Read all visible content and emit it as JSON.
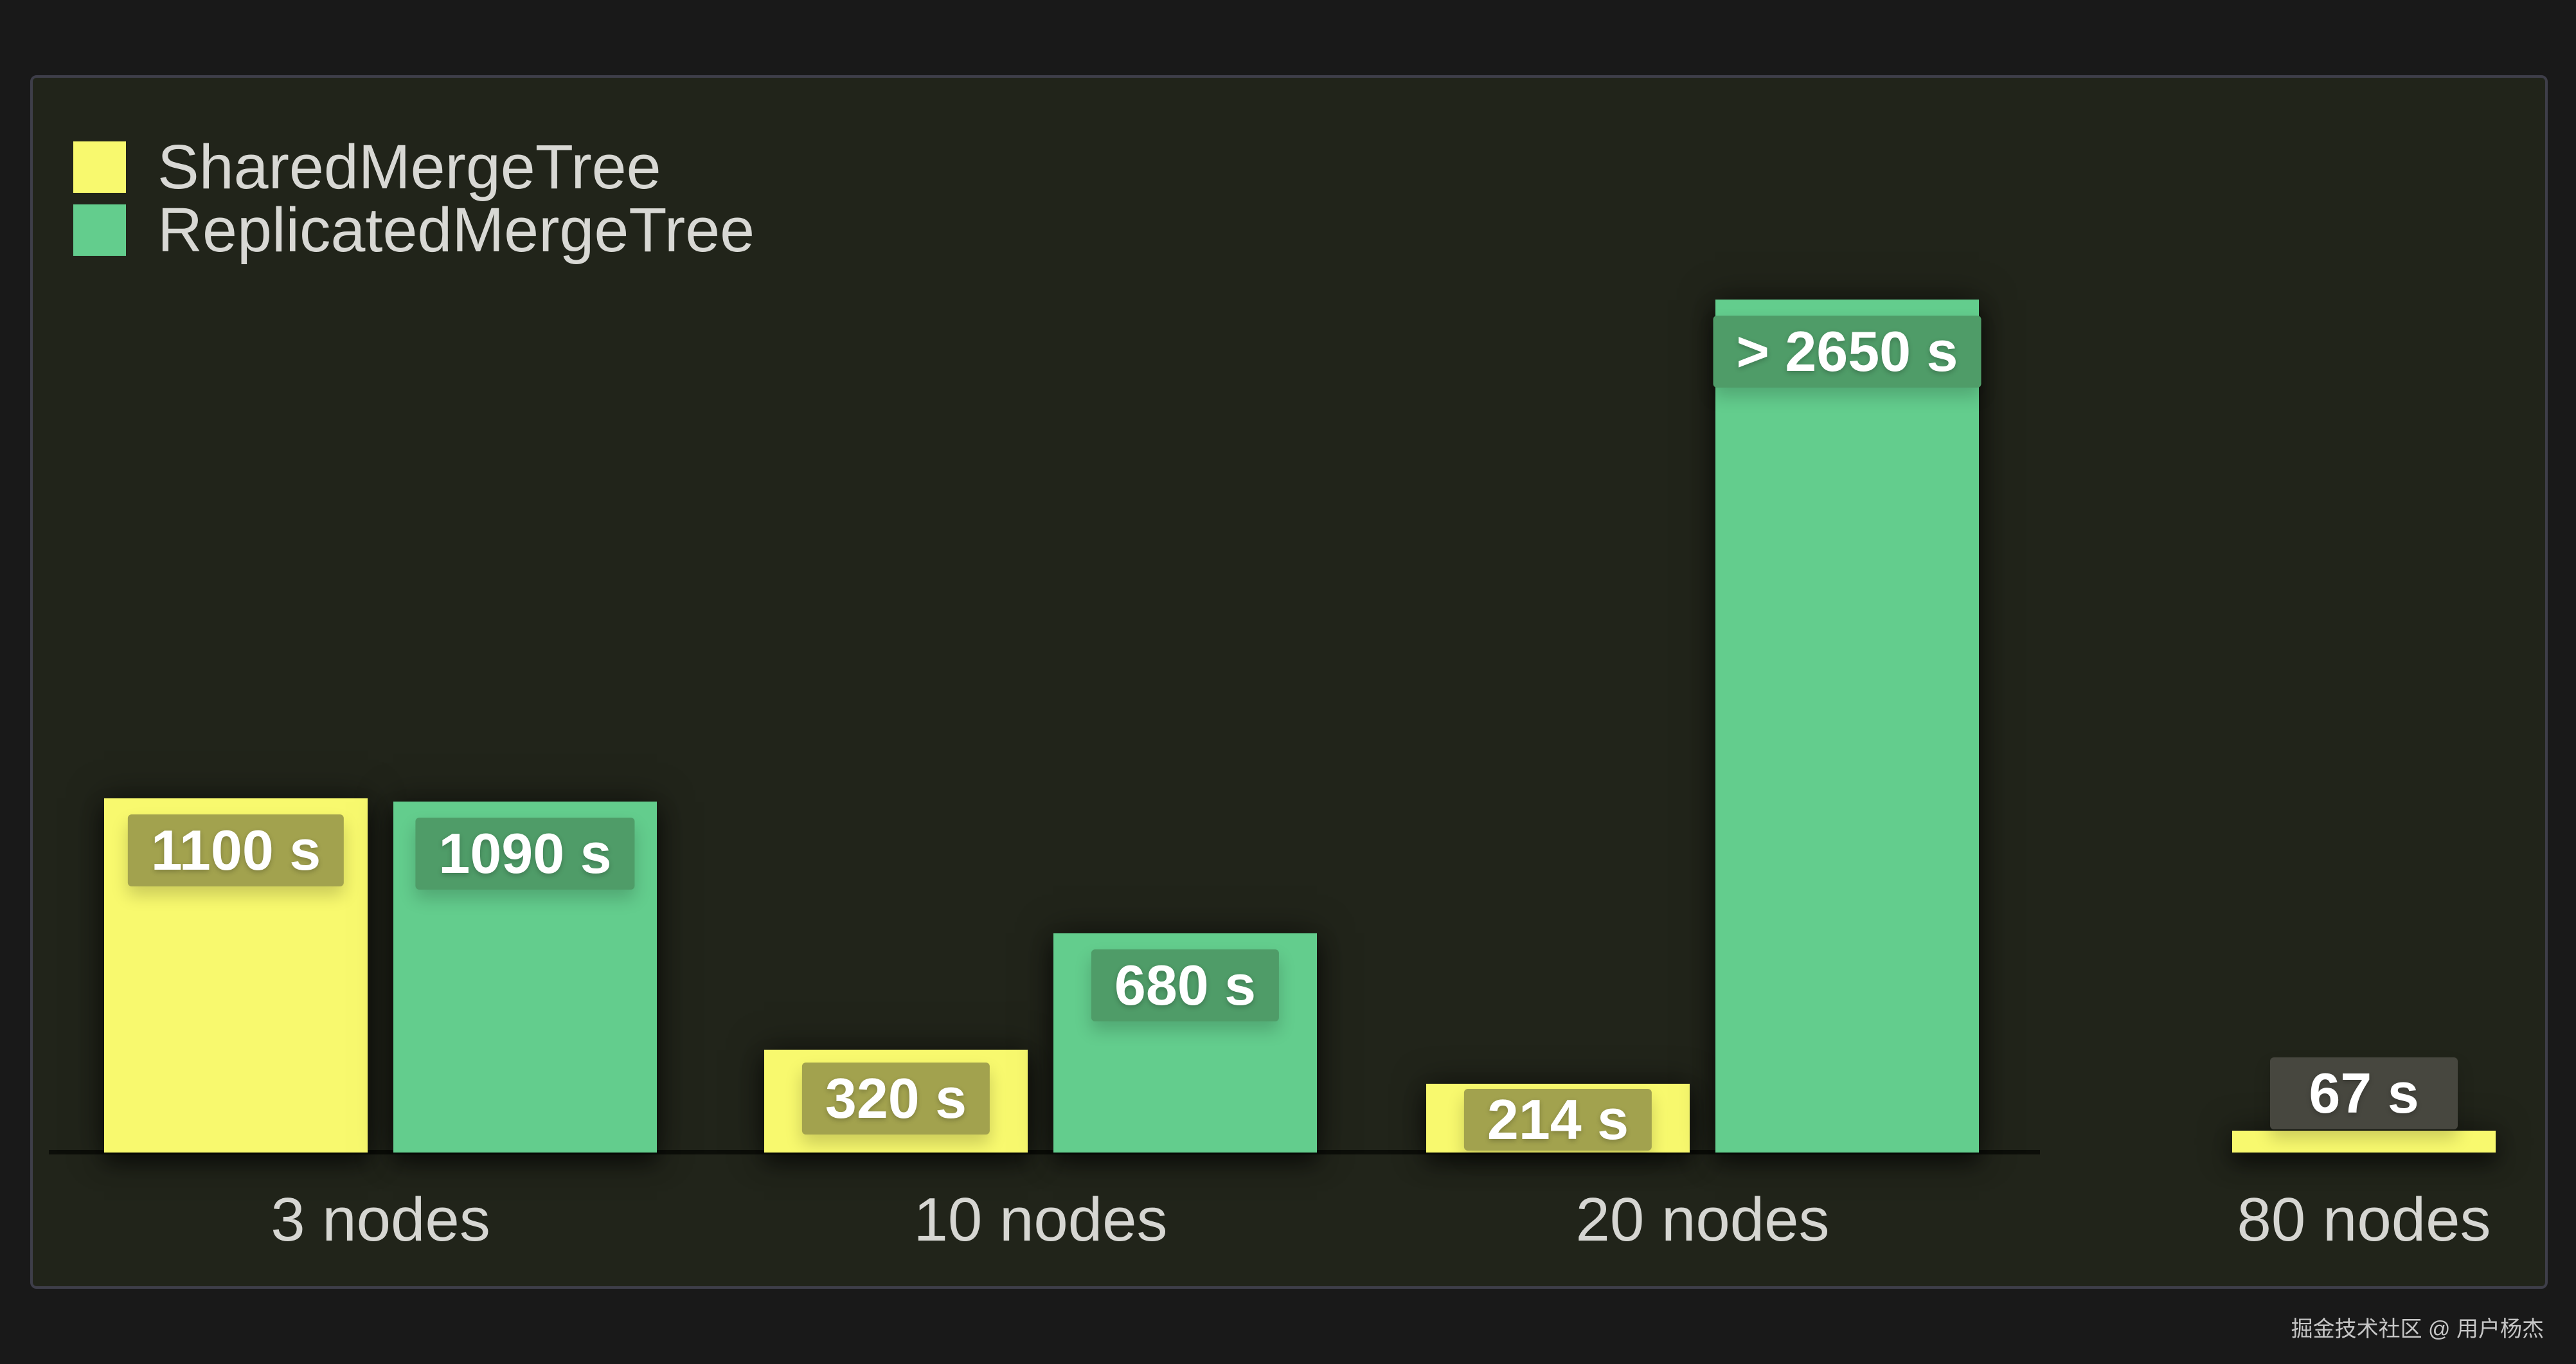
{
  "watermark": "掘金技术社区 @ 用户杨杰",
  "colors": {
    "page_background": "#191919",
    "panel_background": "#21241a",
    "panel_border": "#3e3e49",
    "axis_line": "#0c0e09",
    "text": "#d8d8d4",
    "value_text": "#ffffff",
    "label_outside_bg": "#47473f"
  },
  "chart_data": {
    "type": "bar",
    "title": "",
    "xlabel": "",
    "ylabel": "",
    "categories": [
      "3 nodes",
      "10 nodes",
      "20 nodes",
      "80 nodes"
    ],
    "series": [
      {
        "name": "SharedMergeTree",
        "color": "#f8f96e",
        "label_bg": "#a2a24e",
        "values": [
          1100,
          320,
          214,
          67
        ],
        "labels": [
          "1100 s",
          "320 s",
          "214 s",
          "67 s"
        ]
      },
      {
        "name": "ReplicatedMergeTree",
        "color": "#63cd8d",
        "label_bg": "#4f9c68",
        "values": [
          1090,
          680,
          2650,
          null
        ],
        "labels": [
          "1090 s",
          "680 s",
          "> 2650 s",
          null
        ]
      }
    ],
    "value_unit": "s",
    "ylim": [
      0,
      3340
    ],
    "grid": false,
    "y_axis_visible": false,
    "legend_position": "top-left",
    "annotations": [
      "Value for ReplicatedMergeTree at 20 nodes exceeds 2650 s; no ReplicatedMergeTree bar shown for 80 nodes"
    ]
  }
}
